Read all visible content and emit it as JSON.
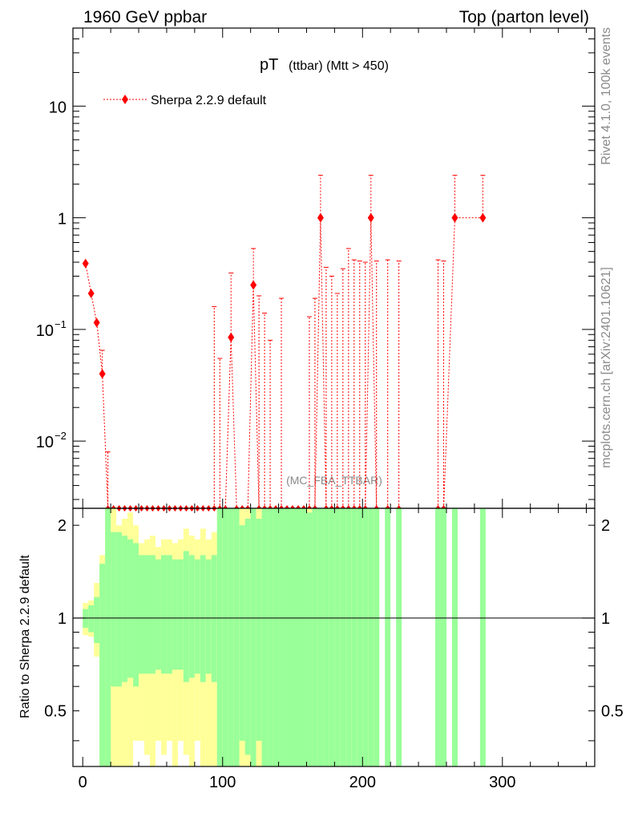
{
  "header": {
    "left": "1960 GeV ppbar",
    "right": "Top (parton level)"
  },
  "side_labels": {
    "rivet": "Rivet 4.1.0,  100k events",
    "mcplots": "mcplots.cern.ch [arXiv:2401.10621]"
  },
  "chart_data": [
    {
      "type": "line",
      "panel": "main",
      "title": "pT",
      "title_sub": "(ttbar) (Mtt > 450)",
      "watermark": "(MC_FBA_TTBAR)",
      "yscale": "log",
      "ylim": [
        0.0025,
        50
      ],
      "xlim": [
        -7,
        366
      ],
      "legend": {
        "label": "Sherpa 2.2.9 default",
        "position": "top-left",
        "color": "#ff0000"
      },
      "yticks": [
        {
          "value": 10,
          "label": "10"
        },
        {
          "value": 1,
          "label": "1"
        },
        {
          "value": 0.1,
          "label": "10",
          "sup": "−1"
        },
        {
          "value": 0.01,
          "label": "10",
          "sup": "−2"
        }
      ],
      "series": [
        {
          "name": "Sherpa 2.2.9 default",
          "color": "#ff0000",
          "x": [
            2,
            6,
            10,
            14,
            18,
            22,
            26,
            30,
            34,
            38,
            42,
            46,
            50,
            54,
            58,
            62,
            66,
            70,
            74,
            78,
            82,
            86,
            90,
            94,
            98,
            102,
            106,
            110,
            114,
            118,
            122,
            126,
            130,
            134,
            138,
            142,
            146,
            150,
            154,
            158,
            162,
            166,
            170,
            174,
            178,
            182,
            186,
            190,
            194,
            198,
            202,
            206,
            210,
            218,
            226,
            254,
            258,
            266,
            286
          ],
          "y": [
            0.39,
            0.21,
            0.115,
            0.04,
            0.0025,
            0.0025,
            0.0025,
            0.0025,
            0.0025,
            0.0025,
            0.0025,
            0.0025,
            0.0025,
            0.0025,
            0.0025,
            0.0025,
            0.0025,
            0.0025,
            0.0025,
            0.0025,
            0.0025,
            0.0025,
            0.0025,
            0.0025,
            0.0025,
            0.0025,
            0.085,
            0.0025,
            0.0025,
            0.0025,
            0.25,
            0.0025,
            0.0025,
            0.0025,
            0.0025,
            0.0025,
            0.0025,
            0.0025,
            0.0025,
            0.0025,
            0.0025,
            0.0025,
            1,
            0.0025,
            0.0025,
            0.0025,
            0.0025,
            0.0025,
            0.0025,
            0.0025,
            0.0025,
            1,
            0.0025,
            0.0025,
            0.0025,
            0.0025,
            0.0025,
            1,
            1
          ],
          "y_err_high": [
            0,
            0,
            0,
            0.065,
            0.008,
            0,
            0,
            0,
            0,
            0,
            0,
            0,
            0,
            0,
            0,
            0,
            0,
            0,
            0,
            0,
            0,
            0,
            0,
            0.16,
            0.055,
            0,
            0.32,
            0,
            0,
            0,
            0.53,
            0.2,
            0.14,
            0.08,
            0,
            0.19,
            0,
            0,
            0,
            0,
            0.13,
            0.19,
            2.4,
            0.36,
            0.3,
            0.21,
            0.35,
            0.53,
            0.42,
            0.41,
            0.4,
            2.4,
            0.41,
            0.42,
            0.41,
            0.42,
            0.41,
            2.4,
            2.4
          ]
        }
      ],
      "xticks": [
        0,
        100,
        200,
        300
      ]
    },
    {
      "type": "area",
      "panel": "ratio",
      "ylabel": "Ratio to Sherpa 2.2.9 default",
      "ylim": [
        0.33,
        2.27
      ],
      "yscale": "log",
      "reference_line": 1,
      "yticks": [
        {
          "value": 0.5,
          "label": "0.5"
        },
        {
          "value": 1,
          "label": "1"
        },
        {
          "value": 2,
          "label": "2"
        }
      ],
      "xticks": [
        0,
        100,
        200,
        300
      ],
      "bins_x": [
        0,
        4,
        8,
        12,
        16,
        20,
        24,
        28,
        32,
        36,
        40,
        44,
        48,
        52,
        56,
        60,
        64,
        68,
        72,
        76,
        80,
        84,
        88,
        92,
        96,
        100,
        104,
        108,
        112,
        116,
        120,
        124,
        128,
        132,
        136,
        140,
        144,
        148,
        152,
        156,
        160,
        164,
        168,
        172,
        176,
        180,
        184,
        188,
        192,
        196,
        200,
        204,
        208,
        212
      ],
      "green_high": [
        1.07,
        1.1,
        1.17,
        1.5,
        2.3,
        1.9,
        1.9,
        1.85,
        1.8,
        1.75,
        1.6,
        1.6,
        1.6,
        1.55,
        1.6,
        1.6,
        1.55,
        1.55,
        1.65,
        1.6,
        1.55,
        1.6,
        1.55,
        1.6,
        2.3,
        2.3,
        2.3,
        2.3,
        2.0,
        2.1,
        2.3,
        2.1,
        2.3,
        2.3,
        2.3,
        2.3,
        2.3,
        2.3,
        2.3,
        2.3,
        2.2,
        2.3,
        2.3,
        2.3,
        2.3,
        2.3,
        2.3,
        2.3,
        2.3,
        2.3,
        2.3,
        2.3,
        2.3
      ],
      "green_low": [
        0.93,
        0.9,
        0.83,
        0.33,
        0.33,
        0.6,
        0.6,
        0.62,
        0.64,
        0.6,
        0.66,
        0.66,
        0.66,
        0.68,
        0.66,
        0.66,
        0.68,
        0.68,
        0.62,
        0.64,
        0.66,
        0.62,
        0.66,
        0.62,
        0.33,
        0.33,
        0.33,
        0.33,
        0.4,
        0.36,
        0.33,
        0.4,
        0.33,
        0.33,
        0.33,
        0.33,
        0.33,
        0.33,
        0.33,
        0.33,
        0.33,
        0.33,
        0.33,
        0.33,
        0.33,
        0.33,
        0.33,
        0.33,
        0.33,
        0.33,
        0.33,
        0.33,
        0.33
      ],
      "yellow_high": [
        1.12,
        1.14,
        1.3,
        1.6,
        2.3,
        2.3,
        2.0,
        2.1,
        2.2,
        2.0,
        1.75,
        1.8,
        1.85,
        1.7,
        1.8,
        1.8,
        1.75,
        1.8,
        1.95,
        1.85,
        1.8,
        1.95,
        1.8,
        1.9,
        2.3,
        2.3,
        2.3,
        2.3,
        2.3,
        2.3,
        2.3,
        2.3,
        2.3,
        2.3,
        2.3,
        2.3,
        2.3,
        2.3,
        2.3,
        2.3,
        2.3,
        2.3,
        2.3,
        2.3,
        2.3,
        2.3,
        2.3,
        2.3,
        2.3,
        2.3,
        2.3,
        2.3,
        2.3
      ],
      "yellow_low": [
        0.88,
        0.87,
        0.75,
        0.33,
        0.33,
        0.33,
        0.33,
        0.33,
        0.33,
        0.4,
        0.4,
        0.36,
        0.33,
        0.4,
        0.36,
        0.4,
        0.33,
        0.4,
        0.36,
        0.33,
        0.4,
        0.33,
        0.33,
        0.33,
        0.33,
        0.33,
        0.33,
        0.33,
        0.33,
        0.33,
        0.33,
        0.33,
        0.33,
        0.33,
        0.33,
        0.33,
        0.33,
        0.33,
        0.33,
        0.33,
        0.33,
        0.33,
        0.33,
        0.33,
        0.33,
        0.33,
        0.33,
        0.33,
        0.33,
        0.33,
        0.33,
        0.33,
        0.33
      ],
      "extra_bins": [
        {
          "x0": 216,
          "x1": 220
        },
        {
          "x0": 224,
          "x1": 228
        },
        {
          "x0": 252,
          "x1": 260
        },
        {
          "x0": 264,
          "x1": 268
        },
        {
          "x0": 284,
          "x1": 288
        }
      ],
      "colors": {
        "green": "#99ff99",
        "yellow": "#ffff99"
      }
    }
  ]
}
